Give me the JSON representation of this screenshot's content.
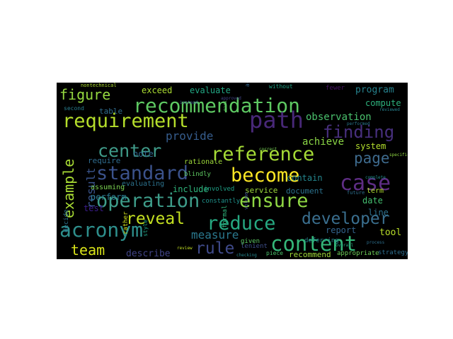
{
  "wordcloud": {
    "background": "#000000",
    "words": [
      {
        "text": "recommendation",
        "weight": 1.0,
        "color": "#5ec962"
      },
      {
        "text": "path",
        "weight": 0.95,
        "color": "#482878"
      },
      {
        "text": "requirement",
        "weight": 0.92,
        "color": "#b5de2b"
      },
      {
        "text": "reference",
        "weight": 0.9,
        "color": "#a5db36"
      },
      {
        "text": "center",
        "weight": 0.86,
        "color": "#3f9a88"
      },
      {
        "text": "standard",
        "weight": 0.86,
        "color": "#3b528b"
      },
      {
        "text": "become",
        "weight": 0.85,
        "color": "#fde725"
      },
      {
        "text": "case",
        "weight": 0.84,
        "color": "#5e2d84"
      },
      {
        "text": "operation",
        "weight": 0.82,
        "color": "#3e9d8a"
      },
      {
        "text": "ensure",
        "weight": 0.82,
        "color": "#8fd744"
      },
      {
        "text": "content",
        "weight": 0.8,
        "color": "#35b779"
      },
      {
        "text": "acronym",
        "weight": 0.78,
        "color": "#2e8f8c"
      },
      {
        "text": "reduce",
        "weight": 0.76,
        "color": "#26a881"
      },
      {
        "text": "developer",
        "weight": 0.7,
        "color": "#3a6f8f"
      },
      {
        "text": "finding",
        "weight": 0.68,
        "color": "#472f7d"
      },
      {
        "text": "example",
        "weight": 0.66,
        "color": "#a8db34"
      },
      {
        "text": "figure",
        "weight": 0.62,
        "color": "#95d840"
      },
      {
        "text": "reveal",
        "weight": 0.6,
        "color": "#c4e021"
      },
      {
        "text": "rule",
        "weight": 0.6,
        "color": "#3f4a8a"
      },
      {
        "text": "team",
        "weight": 0.58,
        "color": "#d8e219"
      },
      {
        "text": "page",
        "weight": 0.58,
        "color": "#3e6b8e"
      },
      {
        "text": "measure",
        "weight": 0.48,
        "color": "#2a788e"
      },
      {
        "text": "observation",
        "weight": 0.44,
        "color": "#4ac16d"
      },
      {
        "text": "provide",
        "weight": 0.44,
        "color": "#365d8d"
      },
      {
        "text": "achieve",
        "weight": 0.42,
        "color": "#8bd646"
      },
      {
        "text": "program",
        "weight": 0.4,
        "color": "#26828e"
      },
      {
        "text": "result",
        "weight": 0.4,
        "color": "#3a548c"
      },
      {
        "text": "compute",
        "weight": 0.36,
        "color": "#2db27d"
      },
      {
        "text": "describe",
        "weight": 0.36,
        "color": "#414487"
      },
      {
        "text": "system",
        "weight": 0.34,
        "color": "#b2dd2d"
      },
      {
        "text": "evaluate",
        "weight": 0.34,
        "color": "#22a884"
      },
      {
        "text": "exceed",
        "weight": 0.34,
        "color": "#aadc32"
      },
      {
        "text": "service",
        "weight": 0.32,
        "color": "#9dd93b"
      },
      {
        "text": "document",
        "weight": 0.32,
        "color": "#2c728e"
      },
      {
        "text": "include",
        "weight": 0.32,
        "color": "#2fb47c"
      },
      {
        "text": "report",
        "weight": 0.32,
        "color": "#33638d"
      },
      {
        "text": "tool",
        "weight": 0.32,
        "color": "#b8de29"
      },
      {
        "text": "recommend",
        "weight": 0.3,
        "color": "#a0da39"
      },
      {
        "text": "contain",
        "weight": 0.3,
        "color": "#24868e"
      },
      {
        "text": "perform",
        "weight": 0.3,
        "color": "#2a788e"
      },
      {
        "text": "date",
        "weight": 0.3,
        "color": "#44bf70"
      },
      {
        "text": "note",
        "weight": 0.28,
        "color": "#31688e"
      },
      {
        "text": "table",
        "weight": 0.28,
        "color": "#2f6c8e"
      },
      {
        "text": "line",
        "weight": 0.28,
        "color": "#2d718e"
      },
      {
        "text": "require",
        "weight": 0.26,
        "color": "#2f6b8e"
      },
      {
        "text": "term",
        "weight": 0.26,
        "color": "#b0dd2f"
      },
      {
        "text": "rationale",
        "weight": 0.24,
        "color": "#9fda3a"
      },
      {
        "text": "evaluating",
        "weight": 0.24,
        "color": "#2c738e"
      },
      {
        "text": "assuming",
        "weight": 0.24,
        "color": "#7ad151"
      },
      {
        "text": "strategy",
        "weight": 0.22,
        "color": "#2e6e8e"
      },
      {
        "text": "test",
        "weight": 0.22,
        "color": "#3b1c8c"
      },
      {
        "text": "appropriate",
        "weight": 0.2,
        "color": "#6ece58"
      },
      {
        "text": "involved",
        "weight": 0.2,
        "color": "#1fa187"
      },
      {
        "text": "constantly",
        "weight": 0.2,
        "color": "#20928c"
      },
      {
        "text": "lenient",
        "weight": 0.2,
        "color": "#3d4e8a"
      },
      {
        "text": "deferring",
        "weight": 0.2,
        "color": "#24878e"
      },
      {
        "text": "blindly",
        "weight": 0.2,
        "color": "#5ec962"
      },
      {
        "text": "piece",
        "weight": 0.18,
        "color": "#4cc26c"
      },
      {
        "text": "decide",
        "weight": 0.18,
        "color": "#2c728e"
      },
      {
        "text": "nontechnical",
        "weight": 0.16,
        "color": "#addc30"
      },
      {
        "text": "second",
        "weight": 0.16,
        "color": "#287d8e"
      },
      {
        "text": "future",
        "weight": 0.16,
        "color": "#2e6f8e"
      },
      {
        "text": "given",
        "weight": 0.16,
        "color": "#5cc863"
      },
      {
        "text": "without",
        "weight": 0.16,
        "color": "#20a386"
      },
      {
        "text": "fewer",
        "weight": 0.16,
        "color": "#471365"
      },
      {
        "text": "rather",
        "weight": 0.16,
        "color": "#d2e21b"
      },
      {
        "text": "style",
        "weight": 0.16,
        "color": "#20a386"
      },
      {
        "text": "volume",
        "weight": 0.15,
        "color": "#3d4d8a"
      },
      {
        "text": "checking",
        "weight": 0.14,
        "color": "#24878e"
      },
      {
        "text": "performed",
        "weight": 0.14,
        "color": "#2a788e"
      },
      {
        "text": "accepting",
        "weight": 0.14,
        "color": "#32648e"
      },
      {
        "text": "mass",
        "weight": 0.14,
        "color": "#5ec962"
      },
      {
        "text": "formal",
        "weight": 0.14,
        "color": "#2fb47c"
      },
      {
        "text": "approved",
        "weight": 0.12,
        "color": "#414487"
      },
      {
        "text": "reviewed",
        "weight": 0.12,
        "color": "#26828e"
      },
      {
        "text": "specific",
        "weight": 0.12,
        "color": "#90d743"
      },
      {
        "text": "complete",
        "weight": 0.12,
        "color": "#218f8d"
      },
      {
        "text": "instead",
        "weight": 0.12,
        "color": "#3b528b"
      },
      {
        "text": "correct",
        "weight": 0.12,
        "color": "#75d054"
      },
      {
        "text": "overall",
        "weight": 0.12,
        "color": "#25ab82"
      },
      {
        "text": "process",
        "weight": 0.12,
        "color": "#2d708e"
      },
      {
        "text": "review",
        "weight": 0.12,
        "color": "#c2df23"
      }
    ]
  }
}
